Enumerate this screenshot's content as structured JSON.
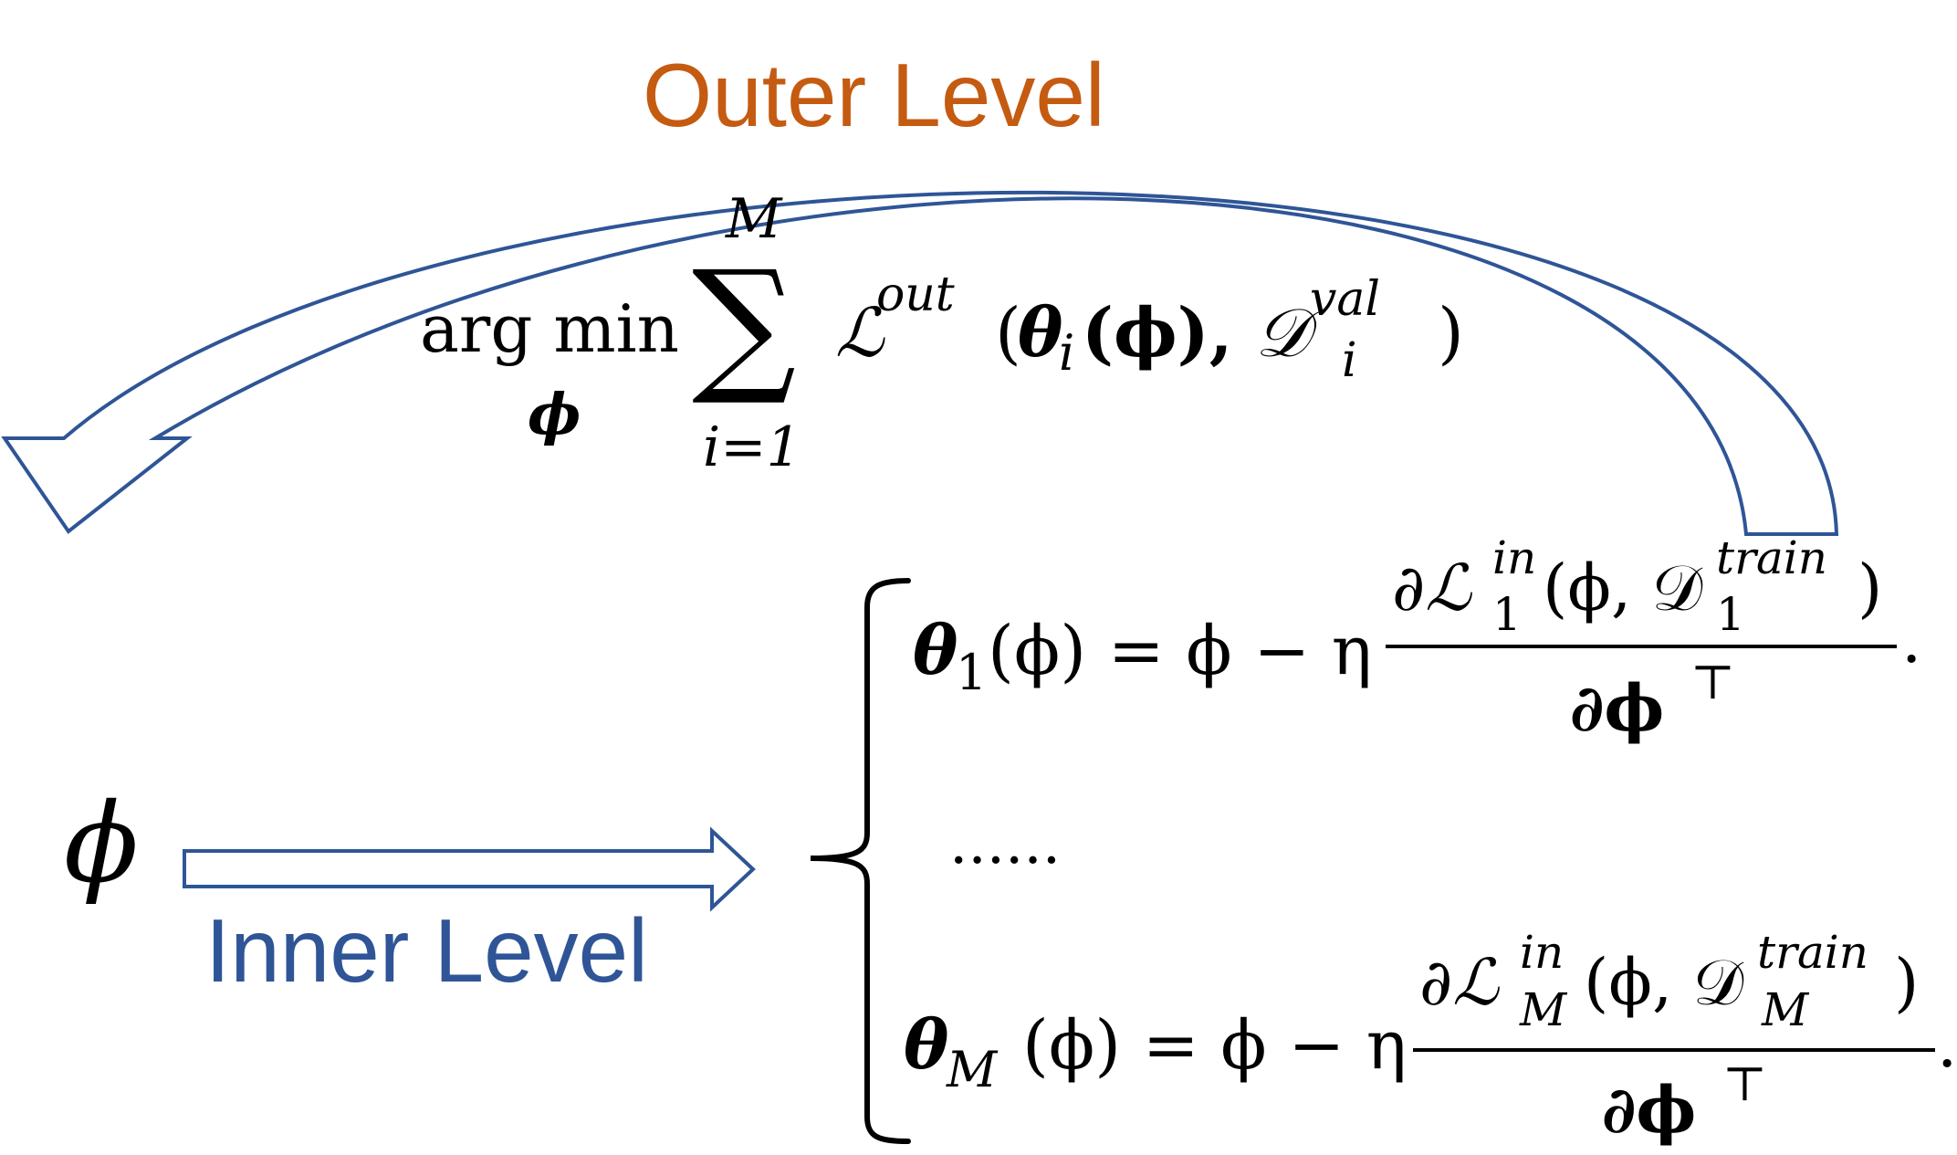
{
  "labels": {
    "outer": "Outer Level",
    "inner": "Inner Level",
    "input_symbol": "ϕ",
    "ellipsis": "......"
  },
  "colors": {
    "outer_label": "#c55a11",
    "inner_label": "#2f5597",
    "arrow_stroke": "#2f5597",
    "formula": "#000000"
  },
  "outer_objective": {
    "argmin": "arg min",
    "argmin_sub": "ϕ",
    "sum_symbol": "∑",
    "sum_upper": "M",
    "sum_lower": "i=1",
    "loss": "ℒ",
    "loss_sup": "out",
    "open_paren": "(",
    "theta": "θ",
    "theta_sub": "i",
    "phi_arg": "(ϕ),",
    "data": "𝒟",
    "data_sup": "val",
    "data_sub": "i",
    "close_paren": ")"
  },
  "inner_updates": [
    {
      "theta": "θ",
      "sub": "1",
      "lhs_rest": "(ϕ) = ϕ − η",
      "num_prefix": "∂ℒ",
      "num_sup": "in",
      "num_sub": "1",
      "num_mid": "(ϕ, 𝒟",
      "num_data_sup": "train",
      "num_data_sub": "1",
      "num_close": ")",
      "den": "∂ϕ",
      "den_sup": "⊤",
      "end": "."
    },
    {
      "theta": "θ",
      "sub": "M",
      "lhs_rest": "(ϕ) = ϕ − η",
      "num_prefix": "∂ℒ",
      "num_sup": "in",
      "num_sub": "M",
      "num_mid": "(ϕ, 𝒟",
      "num_data_sup": "train",
      "num_data_sub": "M",
      "num_close": ")",
      "den": "∂ϕ",
      "den_sup": "⊤",
      "end": "."
    }
  ]
}
